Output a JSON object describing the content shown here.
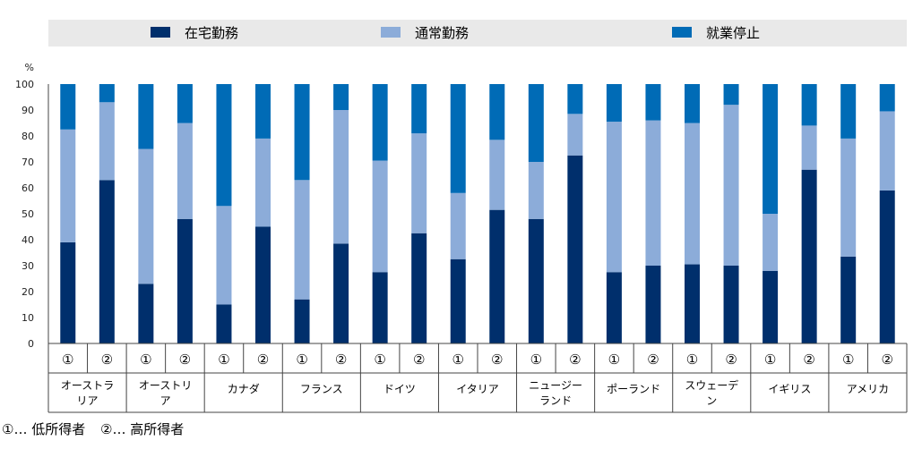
{
  "chart_data": {
    "type": "bar",
    "stacked": true,
    "y_unit": "%",
    "ylim": [
      0,
      100
    ],
    "yticks": [
      0,
      10,
      20,
      30,
      40,
      50,
      60,
      70,
      80,
      90,
      100
    ],
    "legend_position": "top",
    "grid": false,
    "series": [
      {
        "name": "在宅勤務",
        "color": "#002f6c",
        "values": [
          39,
          63,
          23,
          48,
          15,
          45,
          17,
          38.5,
          27.5,
          42.5,
          32.5,
          51.5,
          48,
          72.5,
          27.5,
          30,
          30.5,
          30,
          28,
          67,
          33.5,
          59
        ]
      },
      {
        "name": "通常勤務",
        "color": "#8cacd9",
        "values": [
          43.5,
          30,
          52,
          37,
          38,
          34,
          46,
          51.5,
          43,
          38.5,
          25.5,
          27,
          22,
          16,
          58,
          56,
          54.5,
          62,
          22,
          17,
          45.5,
          30.5
        ]
      },
      {
        "name": "就業停止",
        "color": "#006bb6",
        "values": [
          17.5,
          7,
          25,
          15,
          47,
          21,
          37,
          10,
          29.5,
          19,
          42,
          21.5,
          30,
          11.5,
          14.5,
          14,
          15,
          8,
          50,
          16,
          21,
          10.5
        ]
      }
    ],
    "income_labels": [
      "①",
      "②"
    ],
    "groups": [
      {
        "label_lines": [
          "オーストラ",
          "リア"
        ]
      },
      {
        "label_lines": [
          "オーストリ",
          "ア"
        ]
      },
      {
        "label_lines": [
          "カナダ"
        ]
      },
      {
        "label_lines": [
          "フランス"
        ]
      },
      {
        "label_lines": [
          "ドイツ"
        ]
      },
      {
        "label_lines": [
          "イタリア"
        ]
      },
      {
        "label_lines": [
          "ニュージー",
          "ランド"
        ]
      },
      {
        "label_lines": [
          "ポーランド"
        ]
      },
      {
        "label_lines": [
          "スウェーデ",
          "ン"
        ]
      },
      {
        "label_lines": [
          "イギリス"
        ]
      },
      {
        "label_lines": [
          "アメリカ"
        ]
      }
    ]
  },
  "footnote": {
    "low": "①… 低所得者",
    "high": "②… 高所得者"
  }
}
